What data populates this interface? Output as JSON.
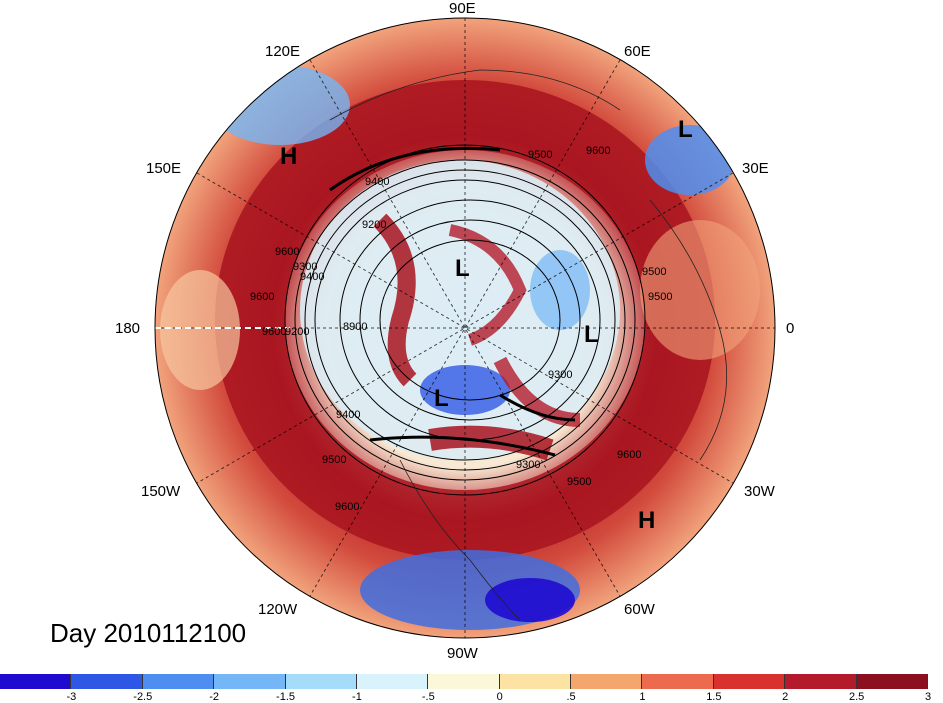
{
  "title": "Day 2010112100",
  "longitude_labels": [
    "90E",
    "60E",
    "30E",
    "0",
    "30W",
    "60W",
    "90W",
    "120W",
    "150W",
    "180",
    "150E",
    "120E"
  ],
  "pressure_systems": [
    {
      "label": "H",
      "name": "high-pressure-label"
    },
    {
      "label": "L",
      "name": "low-pressure-label"
    },
    {
      "label": "L",
      "name": "low-pressure-label"
    },
    {
      "label": "L",
      "name": "low-pressure-label"
    },
    {
      "label": "L",
      "name": "low-pressure-label"
    },
    {
      "label": "H",
      "name": "high-pressure-label"
    }
  ],
  "contour_labels": [
    "9500",
    "9600",
    "9200",
    "9400",
    "8900",
    "9300",
    "9400",
    "9500",
    "9600",
    "9300",
    "9500",
    "9600",
    "9500",
    "9600",
    "9300",
    "9600",
    "9500",
    "9200",
    "9600",
    "9400"
  ],
  "colorbar": {
    "colors": [
      "#1f0bd0",
      "#2f57e6",
      "#4f8ef0",
      "#74b6f6",
      "#a4dcf9",
      "#d8f3fc",
      "#fbf7d9",
      "#fde3a3",
      "#f4a66d",
      "#ec6b4f",
      "#d9322e",
      "#b31b2b",
      "#8b0f1f"
    ],
    "tick_labels": [
      "-3",
      "-2.5",
      "-2",
      "-1.5",
      "-1",
      "-.5",
      "0",
      ".5",
      "1",
      "1.5",
      "2",
      "2.5",
      "3"
    ]
  }
}
